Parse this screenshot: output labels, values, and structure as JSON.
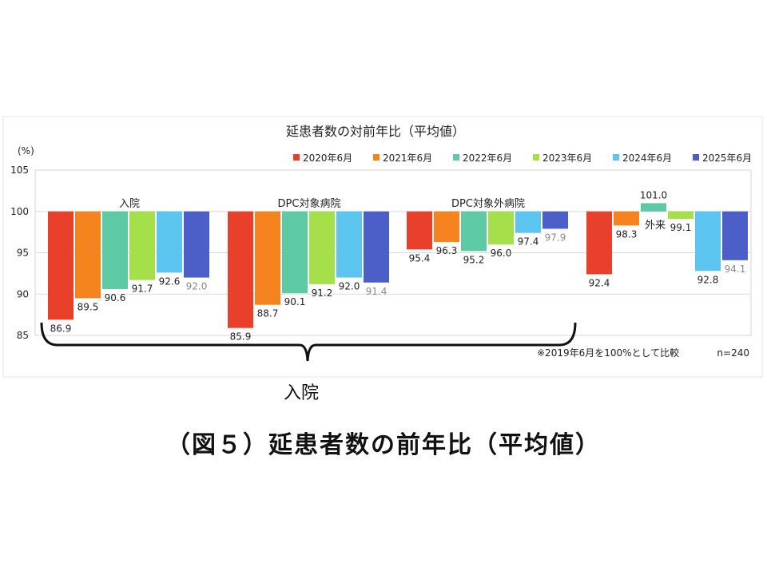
{
  "chart_data": {
    "type": "bar",
    "title": "延患者数の対前年比（平均値）",
    "ylabel": "(%)",
    "ylim": [
      85,
      105
    ],
    "yticks": [
      85,
      90,
      95,
      100,
      105
    ],
    "baseline": 100,
    "grid": true,
    "legend_position": "top-right",
    "categories": [
      "入院",
      "DPC対象病院",
      "DPC対象外病院",
      "外来"
    ],
    "series": [
      {
        "name": "2020年6月",
        "color": "#e8402a",
        "values": [
          86.9,
          85.9,
          95.4,
          92.4
        ]
      },
      {
        "name": "2021年6月",
        "color": "#f5841f",
        "values": [
          89.5,
          88.7,
          96.3,
          98.3
        ]
      },
      {
        "name": "2022年6月",
        "color": "#5dcaa5",
        "values": [
          90.6,
          90.1,
          95.2,
          101.0
        ]
      },
      {
        "name": "2023年6月",
        "color": "#a5e04b",
        "values": [
          91.7,
          91.2,
          96.0,
          99.1
        ]
      },
      {
        "name": "2024年6月",
        "color": "#5bc5f0",
        "values": [
          92.6,
          92.0,
          97.4,
          92.8
        ]
      },
      {
        "name": "2025年6月",
        "color": "#4c5fc9",
        "values": [
          92.0,
          91.4,
          97.9,
          94.1
        ]
      }
    ],
    "footnote": "※2019年6月を100%として比較",
    "sample_size": "n=240"
  },
  "brace_label": "入院",
  "caption": "（図５）延患者数の前年比（平均値）"
}
